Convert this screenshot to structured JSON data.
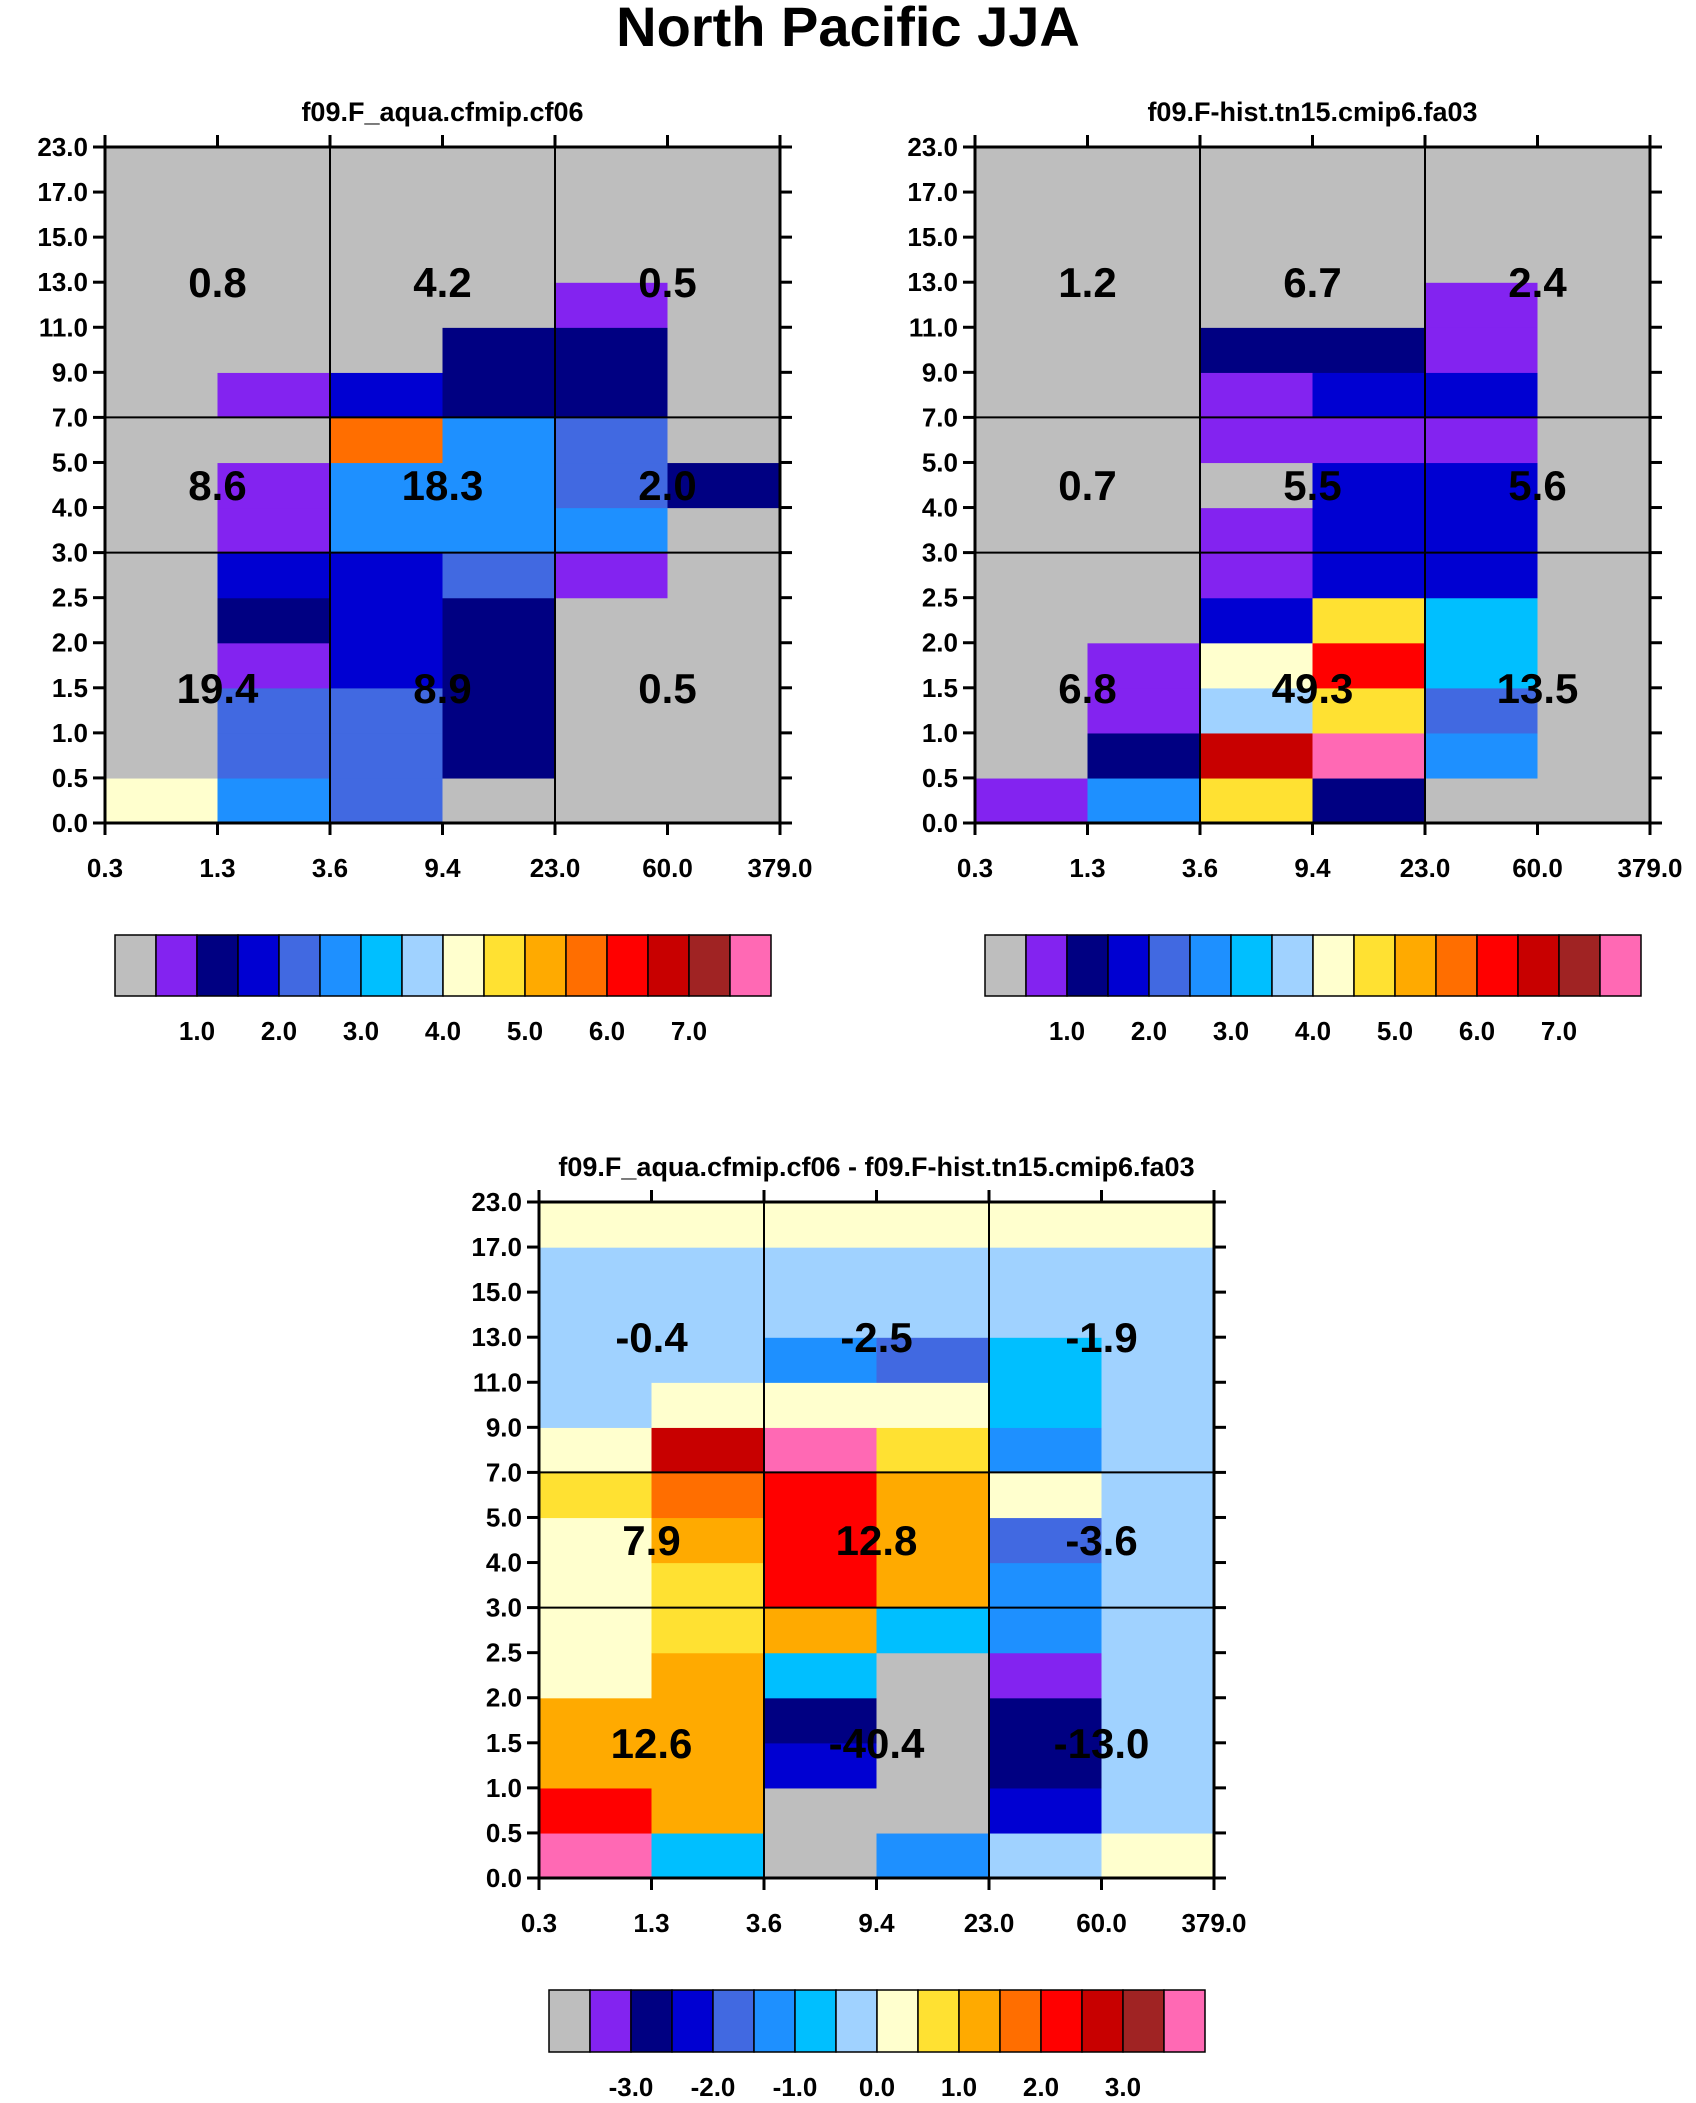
{
  "title": "North Pacific JJA",
  "colors": {
    "levels": [
      "#BEBEBE",
      "#8323F0",
      "#000082",
      "#0000D2",
      "#4169E1",
      "#1E90FF",
      "#00BFFF",
      "#A0D2FF",
      "#FFFFCE",
      "#FFE132",
      "#FFAA00",
      "#FF6E00",
      "#FF0000",
      "#C80000",
      "#A02323",
      "#FF69B4"
    ],
    "gridline": "#000000"
  },
  "chart_data": [
    {
      "type": "heatmap",
      "title": "f09.F_aqua.cfmip.cf06",
      "x_ticks": [
        "0.3",
        "1.3",
        "3.6",
        "9.4",
        "23.0",
        "60.0",
        "379.0"
      ],
      "y_ticks": [
        "0.0",
        "0.5",
        "1.0",
        "1.5",
        "2.0",
        "2.5",
        "3.0",
        "4.0",
        "5.0",
        "7.0",
        "9.0",
        "11.0",
        "13.0",
        "15.0",
        "17.0",
        "23.0"
      ],
      "cells": [
        [
          8,
          0,
          0,
          0,
          0,
          0,
          0,
          0,
          0,
          0,
          0,
          0,
          0,
          0,
          0
        ],
        [
          5,
          4,
          4,
          1,
          2,
          3,
          1,
          1,
          0,
          1,
          0,
          0,
          0,
          0,
          0
        ],
        [
          4,
          4,
          4,
          3,
          3,
          3,
          5,
          5,
          11,
          3,
          0,
          0,
          0,
          0,
          0
        ],
        [
          0,
          2,
          2,
          2,
          2,
          4,
          5,
          5,
          5,
          2,
          2,
          0,
          0,
          0,
          0
        ],
        [
          0,
          0,
          0,
          0,
          0,
          1,
          5,
          4,
          4,
          2,
          2,
          1,
          0,
          0,
          0
        ],
        [
          0,
          0,
          0,
          0,
          0,
          0,
          0,
          2,
          0,
          0,
          0,
          0,
          0,
          0,
          0
        ]
      ],
      "box_labels": [
        [
          "19.4",
          "8.9",
          "0.5"
        ],
        [
          "8.6",
          "18.3",
          "2.0"
        ],
        [
          "0.8",
          "4.2",
          "0.5"
        ]
      ],
      "colorbar": {
        "labels": [
          "1.0",
          "2.0",
          "3.0",
          "4.0",
          "5.0",
          "6.0",
          "7.0"
        ]
      }
    },
    {
      "type": "heatmap",
      "title": "f09.F-hist.tn15.cmip6.fa03",
      "x_ticks": [
        "0.3",
        "1.3",
        "3.6",
        "9.4",
        "23.0",
        "60.0",
        "379.0"
      ],
      "y_ticks": [
        "0.0",
        "0.5",
        "1.0",
        "1.5",
        "2.0",
        "2.5",
        "3.0",
        "4.0",
        "5.0",
        "7.0",
        "9.0",
        "11.0",
        "13.0",
        "15.0",
        "17.0",
        "23.0"
      ],
      "cells": [
        [
          1,
          0,
          0,
          0,
          0,
          0,
          0,
          0,
          0,
          0,
          0,
          0,
          0,
          0,
          0
        ],
        [
          5,
          2,
          1,
          1,
          0,
          0,
          0,
          0,
          0,
          0,
          0,
          0,
          0,
          0,
          0
        ],
        [
          9,
          13,
          7,
          8,
          3,
          1,
          1,
          0,
          1,
          1,
          2,
          0,
          0,
          0,
          0
        ],
        [
          2,
          15,
          9,
          12,
          9,
          3,
          3,
          3,
          1,
          3,
          2,
          0,
          0,
          0,
          0
        ],
        [
          0,
          5,
          4,
          6,
          6,
          3,
          3,
          3,
          1,
          3,
          1,
          1,
          0,
          0,
          0
        ],
        [
          0,
          0,
          0,
          0,
          0,
          0,
          0,
          0,
          0,
          0,
          0,
          0,
          0,
          0,
          0
        ]
      ],
      "box_labels": [
        [
          "6.8",
          "49.3",
          "13.5"
        ],
        [
          "0.7",
          "5.5",
          "5.6"
        ],
        [
          "1.2",
          "6.7",
          "2.4"
        ]
      ],
      "colorbar": {
        "labels": [
          "1.0",
          "2.0",
          "3.0",
          "4.0",
          "5.0",
          "6.0",
          "7.0"
        ]
      }
    },
    {
      "type": "heatmap",
      "title": "f09.F_aqua.cfmip.cf06 - f09.F-hist.tn15.cmip6.fa03",
      "x_ticks": [
        "0.3",
        "1.3",
        "3.6",
        "9.4",
        "23.0",
        "60.0",
        "379.0"
      ],
      "y_ticks": [
        "0.0",
        "0.5",
        "1.0",
        "1.5",
        "2.0",
        "2.5",
        "3.0",
        "4.0",
        "5.0",
        "7.0",
        "9.0",
        "11.0",
        "13.0",
        "15.0",
        "17.0",
        "23.0"
      ],
      "cells": [
        [
          15,
          12,
          10,
          10,
          8,
          8,
          8,
          8,
          9,
          8,
          7,
          7,
          7,
          7,
          8
        ],
        [
          6,
          10,
          10,
          10,
          10,
          9,
          9,
          10,
          11,
          13,
          8,
          7,
          7,
          7,
          8
        ],
        [
          0,
          0,
          3,
          2,
          6,
          10,
          12,
          12,
          12,
          15,
          8,
          5,
          7,
          7,
          8
        ],
        [
          5,
          0,
          0,
          0,
          0,
          6,
          10,
          10,
          10,
          9,
          8,
          4,
          7,
          7,
          8
        ],
        [
          7,
          3,
          2,
          2,
          1,
          5,
          5,
          4,
          8,
          5,
          6,
          6,
          7,
          7,
          8
        ],
        [
          8,
          7,
          7,
          7,
          7,
          7,
          7,
          7,
          7,
          7,
          7,
          7,
          7,
          7,
          8
        ]
      ],
      "box_labels": [
        [
          "12.6",
          "-40.4",
          "-13.0"
        ],
        [
          "7.9",
          "12.8",
          "-3.6"
        ],
        [
          "-0.4",
          "-2.5",
          "-1.9"
        ]
      ],
      "colorbar": {
        "labels": [
          "-3.0",
          "-2.0",
          "-1.0",
          "0.0",
          "1.0",
          "2.0",
          "3.0"
        ]
      }
    }
  ]
}
